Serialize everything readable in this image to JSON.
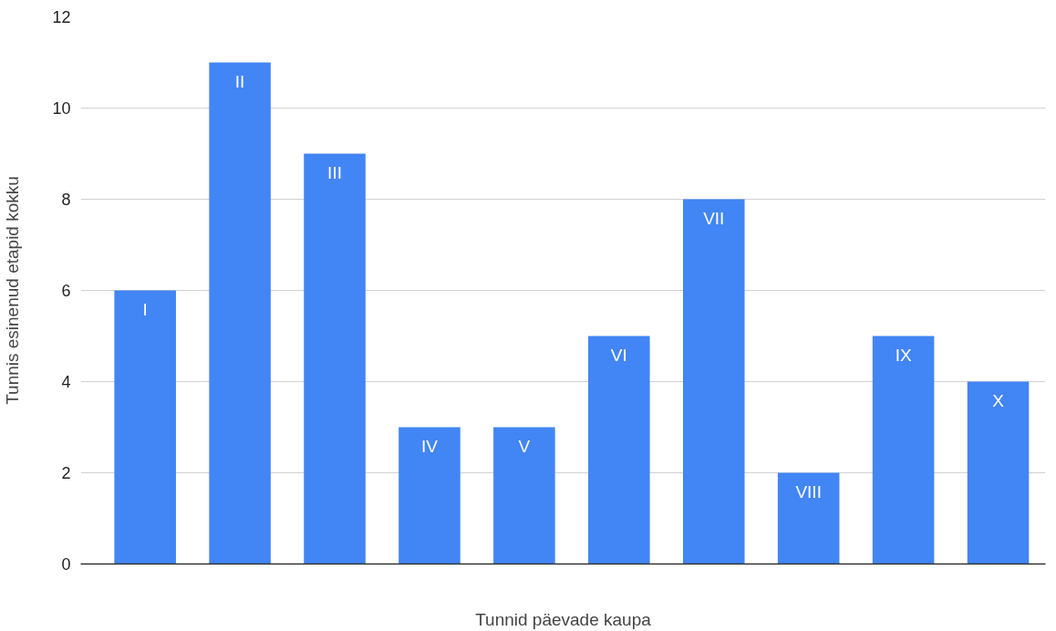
{
  "chart_data": {
    "type": "bar",
    "xlabel": "Tunnid päevade kaupa",
    "ylabel": "Tunnis esinenud etapid kokku",
    "categories": [
      "I",
      "II",
      "III",
      "IV",
      "V",
      "VI",
      "VII",
      "VIII",
      "IX",
      "X"
    ],
    "values": [
      6,
      11,
      9,
      3,
      3,
      5,
      8,
      2,
      5,
      4
    ],
    "color": "#4285f4",
    "ylim": [
      0,
      12
    ],
    "yticks": [
      0,
      2,
      4,
      6,
      8,
      10,
      12
    ],
    "grid": "y"
  }
}
